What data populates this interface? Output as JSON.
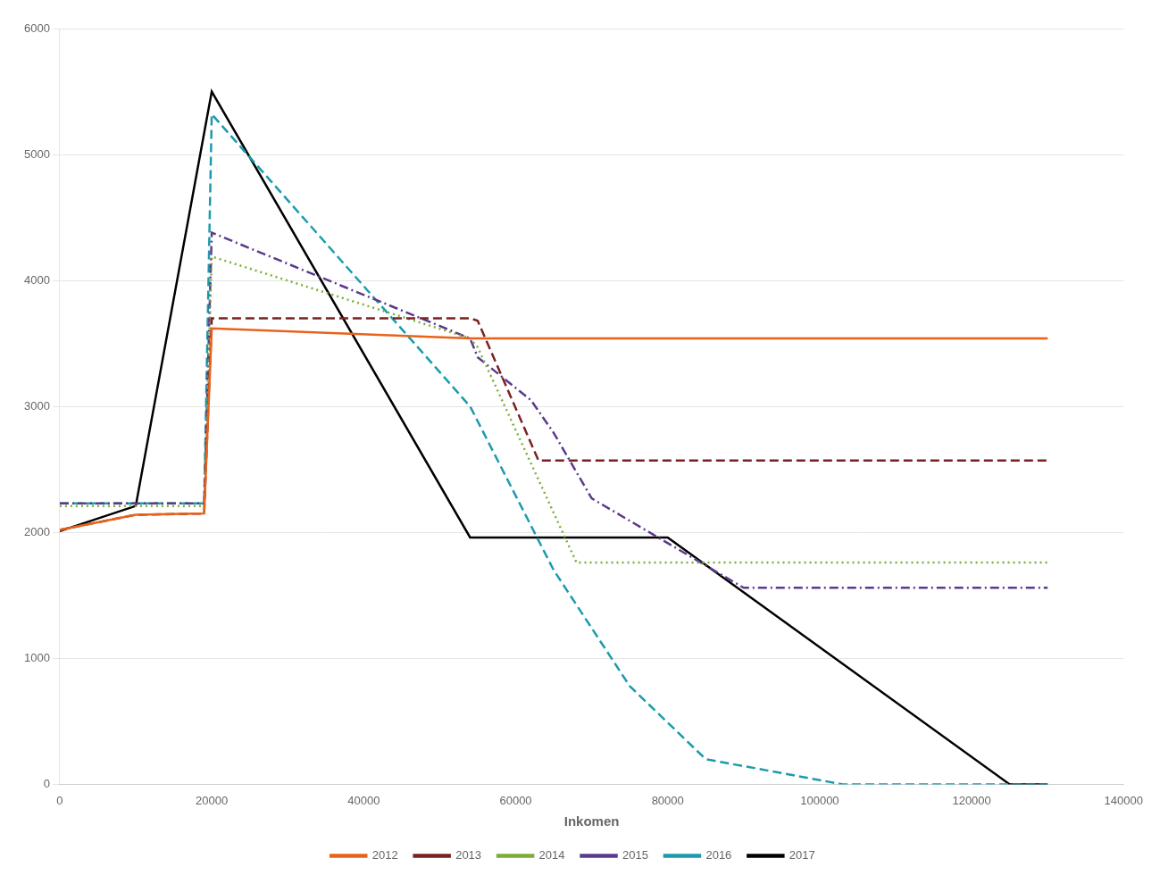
{
  "chart_data": {
    "type": "line",
    "xlabel": "Inkomen",
    "series": [
      {
        "name": "2012",
        "color": "#E8621A",
        "line_style": "solid",
        "x": [
          0,
          10000,
          19000,
          20000,
          54000,
          130000
        ],
        "values": [
          2020,
          2140,
          2150,
          3620,
          3540,
          3540
        ]
      },
      {
        "name": "2013",
        "color": "#7B2020",
        "line_style": "dashed",
        "x": [
          0,
          10000,
          19000,
          20000,
          54000,
          55000,
          63000,
          130000
        ],
        "values": [
          2020,
          2140,
          2150,
          3700,
          3700,
          3680,
          2570,
          2570
        ]
      },
      {
        "name": "2014",
        "color": "#7AAE37",
        "line_style": "dotted",
        "x": [
          0,
          19000,
          20000,
          54000,
          55000,
          68000,
          130000
        ],
        "values": [
          2210,
          2210,
          4190,
          3540,
          3470,
          1760,
          1760
        ]
      },
      {
        "name": "2015",
        "color": "#5B3A8E",
        "line_style": "dashdot",
        "x": [
          0,
          19000,
          20000,
          54000,
          55000,
          62000,
          65000,
          70000,
          90000,
          130000
        ],
        "values": [
          2230,
          2230,
          4380,
          3540,
          3390,
          3050,
          2790,
          2270,
          1560,
          1560
        ]
      },
      {
        "name": "2016",
        "color": "#1B9BAD",
        "line_style": "dashed",
        "x": [
          0,
          19000,
          20000,
          54000,
          65000,
          75000,
          85000,
          103000,
          130000
        ],
        "values": [
          2230,
          2230,
          5320,
          3000,
          1700,
          780,
          200,
          0,
          0
        ]
      },
      {
        "name": "2017",
        "color": "#000000",
        "line_style": "solid",
        "x": [
          0,
          10000,
          20000,
          54000,
          80000,
          125000,
          130000
        ],
        "values": [
          2010,
          2210,
          5500,
          1960,
          1960,
          0,
          0
        ]
      }
    ],
    "xlim": [
      0,
      140000
    ],
    "ylim": [
      0,
      6000
    ],
    "xticks": [
      0,
      20000,
      40000,
      60000,
      80000,
      100000,
      120000,
      140000
    ],
    "yticks": [
      0,
      1000,
      2000,
      3000,
      4000,
      5000,
      6000
    ],
    "grid": "y",
    "legend": "bottom"
  }
}
